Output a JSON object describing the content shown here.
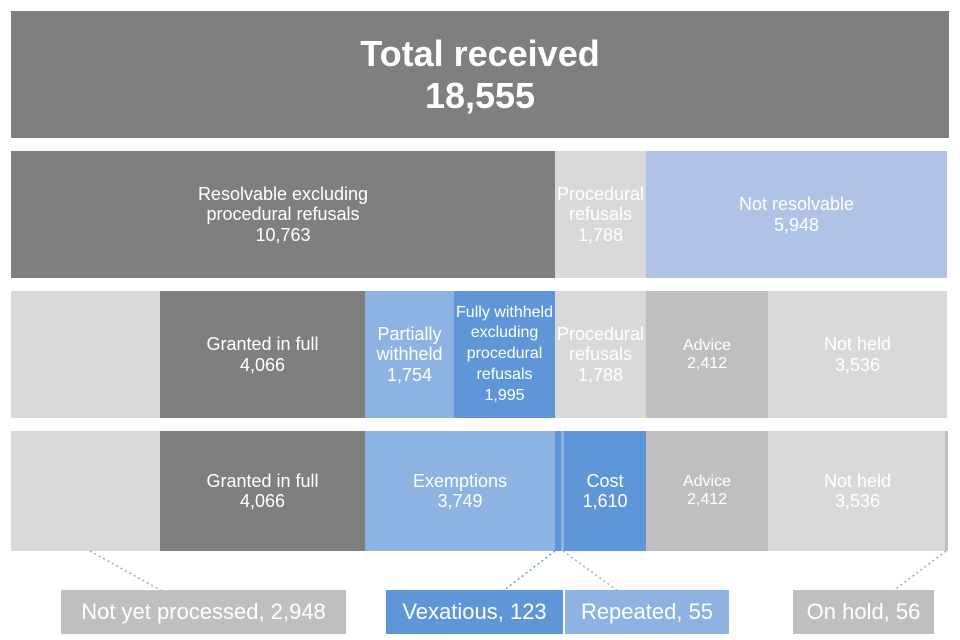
{
  "total": {
    "label": "Total received",
    "value": "18,555"
  },
  "row1": {
    "resolvable": {
      "label": "Resolvable excluding procedural refusals",
      "label_line1": "Resolvable excluding",
      "label_line2": "procedural refusals",
      "value": "10,763"
    },
    "procedural": {
      "label_line1": "Procedural",
      "label_line2": "refusals",
      "value": "1,788"
    },
    "not_resolvable": {
      "label": "Not resolvable",
      "value": "5,948"
    }
  },
  "row2": {
    "granted": {
      "label": "Granted in full",
      "value": "4,066"
    },
    "partially": {
      "label_line1": "Partially",
      "label_line2": "withheld",
      "value": "1,754"
    },
    "fully": {
      "label_line1": "Fully withheld",
      "label_line2": "excluding",
      "label_line3": "procedural",
      "label_line4": "refusals",
      "value": "1,995"
    },
    "procedural": {
      "label_line1": "Procedural",
      "label_line2": "refusals",
      "value": "1,788"
    },
    "advice": {
      "label": "Advice",
      "value": "2,412"
    },
    "not_held": {
      "label": "Not held",
      "value": "3,536"
    }
  },
  "row3": {
    "granted": {
      "label": "Granted in full",
      "value": "4,066"
    },
    "exemptions": {
      "label": "Exemptions",
      "value": "3,749"
    },
    "cost": {
      "label": "Cost",
      "value": "1,610"
    },
    "advice": {
      "label": "Advice",
      "value": "2,412"
    },
    "not_held": {
      "label": "Not held",
      "value": "3,536"
    }
  },
  "callouts": {
    "not_yet_processed": "Not yet processed, 2,948",
    "vexatious": "Vexatious, 123",
    "repeated": "Repeated, 55",
    "on_hold": "On hold, 56"
  },
  "colors": {
    "dark_grey": "#7f7f7f",
    "light_grey": "#d9d9d9",
    "mid_grey": "#bfbfbf",
    "light_blue": "#aec3e5",
    "mid_blue": "#8db3e2",
    "dark_blue": "#5f96d7"
  }
}
